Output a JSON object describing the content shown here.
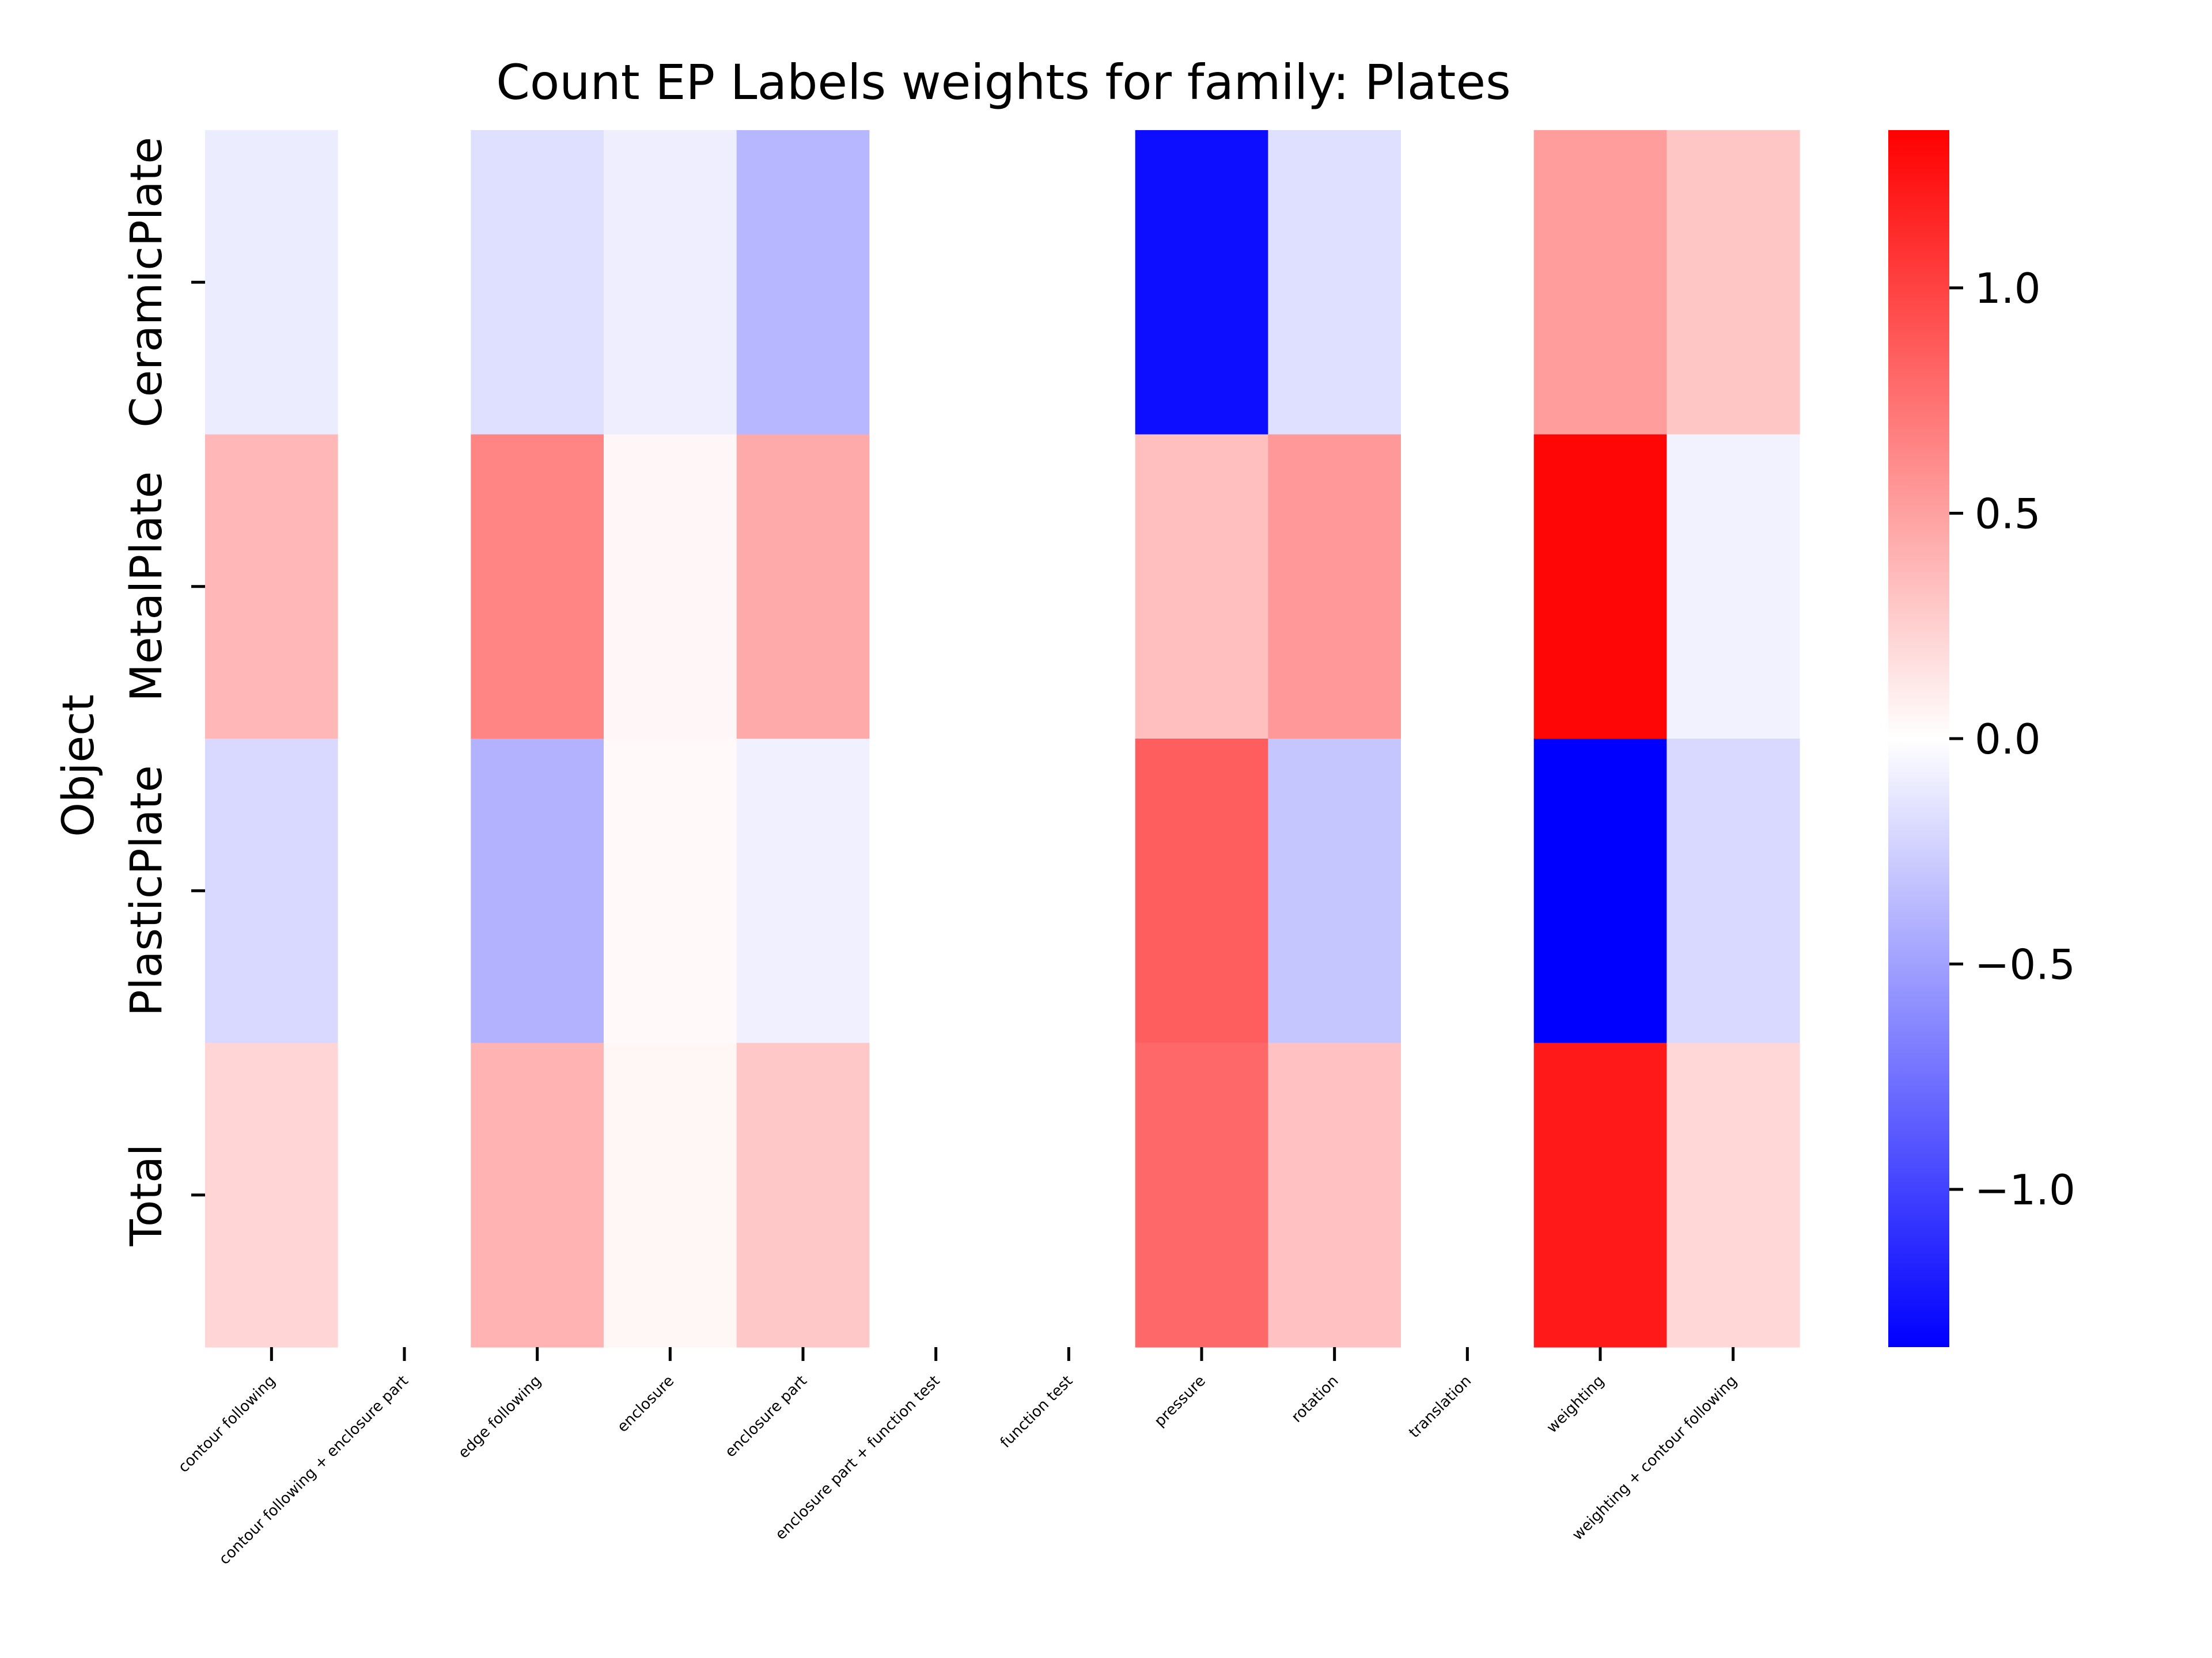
{
  "chart_data": {
    "type": "heatmap",
    "title": "Count EP Labels weights for family: Plates",
    "ylabel": "Object",
    "xlabel": "",
    "x_categories": [
      "contour following",
      "contour following + enclosure part",
      "edge following",
      "enclosure",
      "enclosure part",
      "enclosure part + function test",
      "function test",
      "pressure",
      "rotation",
      "translation",
      "weighting",
      "weighting + contour following"
    ],
    "y_categories": [
      "CeramicPlate",
      "MetalPlate",
      "PlasticPlate",
      "Total"
    ],
    "values": [
      [
        -0.1,
        0.0,
        -0.17,
        -0.09,
        -0.38,
        0.0,
        0.0,
        -1.28,
        -0.17,
        0.0,
        0.52,
        0.3
      ],
      [
        0.38,
        0.0,
        0.65,
        0.04,
        0.45,
        0.0,
        0.0,
        0.34,
        0.54,
        0.0,
        1.32,
        -0.07
      ],
      [
        -0.2,
        0.0,
        -0.41,
        0.03,
        -0.08,
        0.0,
        0.0,
        0.85,
        -0.3,
        0.0,
        -1.35,
        -0.2
      ],
      [
        0.22,
        0.0,
        0.4,
        0.05,
        0.29,
        0.0,
        0.0,
        0.8,
        0.33,
        0.0,
        1.22,
        0.21
      ]
    ],
    "colormap": "bwr",
    "colors": {
      "low": "#0000ff",
      "mid": "#ffffff",
      "high": "#ff0000"
    },
    "vmin": -1.35,
    "vmax": 1.35,
    "colorbar": {
      "ticks": [
        1.0,
        0.5,
        0.0,
        -0.5,
        -1.0
      ],
      "tick_labels": [
        "1.0",
        "0.5",
        "0.0",
        "−0.5",
        "−1.0"
      ]
    }
  }
}
